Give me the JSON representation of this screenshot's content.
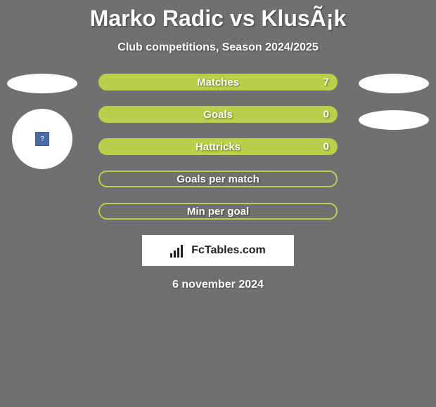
{
  "title": "Marko Radic vs KlusÃ¡k",
  "subtitle": "Club competitions, Season 2024/2025",
  "date": "6 november 2024",
  "logo_text": "FcTables.com",
  "colors": {
    "background": "#707070",
    "bar_full": "#b9d04a",
    "bar_border": "#b9d04a",
    "ellipse": "#ffffff",
    "text": "#ffffff",
    "logo_bg": "#ffffff",
    "logo_text": "#222222"
  },
  "bars": [
    {
      "label": "Matches",
      "value_left": "7",
      "value_right": null,
      "fill_pct": 100
    },
    {
      "label": "Goals",
      "value_left": "0",
      "value_right": null,
      "fill_pct": 100
    },
    {
      "label": "Hattricks",
      "value_left": "0",
      "value_right": null,
      "fill_pct": 100
    },
    {
      "label": "Goals per match",
      "value_left": null,
      "value_right": null,
      "fill_pct": 0
    },
    {
      "label": "Min per goal",
      "value_left": null,
      "value_right": null,
      "fill_pct": 0
    }
  ],
  "bar_style": {
    "height": 24,
    "radius": 12,
    "border_width": 2,
    "label_fontsize": 15
  },
  "left_side": {
    "show_ellipse": true,
    "show_avatar": true
  },
  "right_side": {
    "ellipse_count": 2
  }
}
